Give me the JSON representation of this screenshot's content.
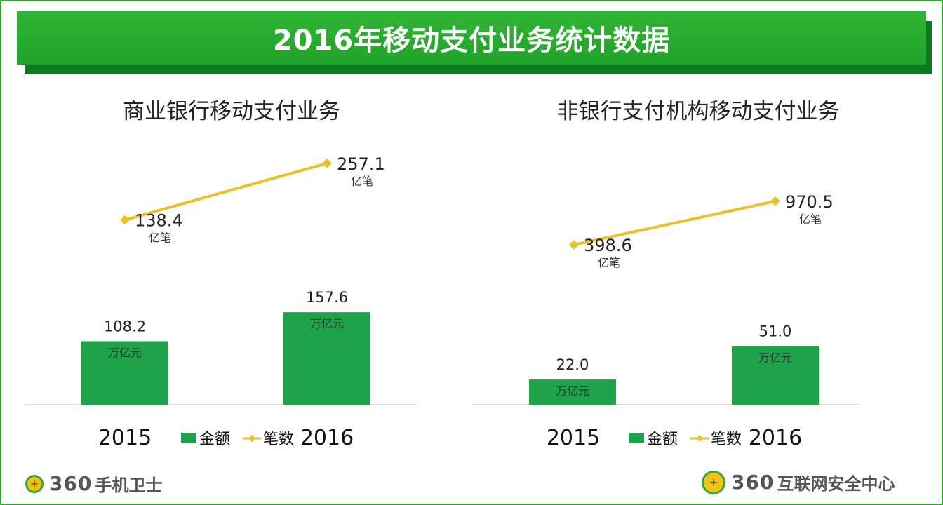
{
  "header": {
    "title": "2016年移动支付业务统计数据"
  },
  "chart_data": [
    {
      "type": "bar",
      "title": "商业银行移动支付业务",
      "categories": [
        "2015",
        "2016"
      ],
      "series": [
        {
          "name": "金额",
          "values": [
            108.2,
            157.6
          ],
          "unit": "万亿元",
          "kind": "bar",
          "color": "#1fa34a"
        },
        {
          "name": "笔数",
          "values": [
            138.4,
            257.1
          ],
          "unit": "亿笔",
          "kind": "line",
          "color": "#e8c228"
        }
      ]
    },
    {
      "type": "bar",
      "title": "非银行支付机构移动支付业务",
      "categories": [
        "2015",
        "2016"
      ],
      "series": [
        {
          "name": "金额",
          "values": [
            22.0,
            51.0
          ],
          "unit": "万亿元",
          "kind": "bar",
          "color": "#1fa34a"
        },
        {
          "name": "笔数",
          "values": [
            398.6,
            970.5
          ],
          "unit": "亿笔",
          "kind": "line",
          "color": "#e8c228"
        }
      ]
    }
  ],
  "footer": {
    "left_logo": {
      "num": "360",
      "text": "手机卫士",
      "icon": "shield-plus-icon"
    },
    "right_logo": {
      "num": "360",
      "text": "互联网安全中心",
      "icon": "shield-plus-icon"
    }
  }
}
